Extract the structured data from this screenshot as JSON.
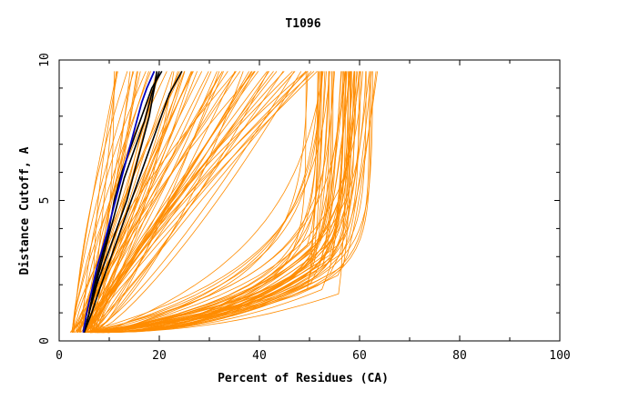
{
  "chart_data": {
    "type": "line",
    "title": "T1096",
    "xlabel": "Percent of Residues (CA)",
    "ylabel": "Distance Cutoff, A",
    "xlim": [
      0,
      100
    ],
    "ylim": [
      0,
      10
    ],
    "x_ticks": [
      "0",
      "20",
      "40",
      "60",
      "80",
      "100"
    ],
    "y_ticks": [
      "0",
      "5",
      "10"
    ],
    "grid": false,
    "legend": "none",
    "colors": {
      "background_models": "#ff8c00",
      "highlight_models": "#000000",
      "best_model": "#0000c0",
      "axes": "#000000"
    },
    "highlight_series": [
      {
        "x": [
          5.0,
          6.0,
          7.0,
          8.5,
          10.0,
          11.5,
          13.0,
          15.0,
          17.0,
          18.5,
          20.0
        ],
        "y": [
          0.3,
          1.0,
          1.8,
          2.8,
          3.8,
          4.8,
          5.8,
          6.8,
          7.8,
          8.8,
          9.6
        ]
      },
      {
        "x": [
          5.0,
          6.0,
          7.5,
          9.5,
          11.5,
          13.5,
          15.0,
          16.5,
          18.0,
          19.0,
          19.5
        ],
        "y": [
          0.3,
          1.0,
          2.0,
          3.0,
          4.0,
          5.0,
          6.0,
          7.0,
          8.0,
          9.0,
          9.6
        ]
      },
      {
        "x": [
          5.0,
          6.5,
          8.0,
          10.0,
          12.0,
          14.0,
          16.0,
          18.0,
          20.0,
          22.0,
          24.5
        ],
        "y": [
          0.3,
          1.0,
          1.8,
          2.8,
          3.8,
          4.8,
          5.8,
          6.8,
          7.8,
          8.8,
          9.6
        ]
      },
      {
        "x": [
          5.0,
          6.0,
          7.0,
          8.5,
          10.0,
          11.0,
          12.5,
          14.5,
          16.5,
          18.5,
          20.5
        ],
        "y": [
          0.3,
          1.0,
          2.0,
          3.0,
          4.0,
          5.0,
          6.0,
          7.0,
          8.0,
          9.0,
          9.6
        ]
      }
    ],
    "best_series": {
      "x": [
        4.8,
        5.5,
        6.5,
        7.5,
        9.0,
        10.5,
        12.0,
        13.5,
        15.0,
        16.5,
        17.5,
        19.0
      ],
      "y": [
        0.3,
        1.0,
        1.8,
        2.6,
        3.5,
        4.5,
        5.5,
        6.5,
        7.5,
        8.5,
        9.0,
        9.6
      ]
    }
  }
}
